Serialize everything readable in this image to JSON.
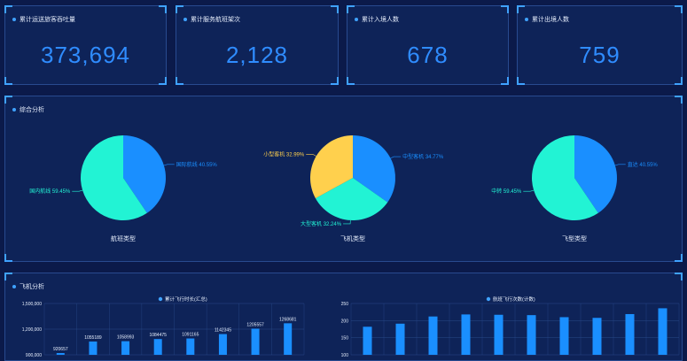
{
  "colors": {
    "bg": "#0b1a4a",
    "panel": "#0e2358",
    "accent": "#3fa2ff",
    "blue": "#1a8fff",
    "cyan": "#22f3d4",
    "yellow": "#ffd04d"
  },
  "kpis": [
    {
      "title": "累计运送旅客吞吐量",
      "value": "373,694"
    },
    {
      "title": "累计服务航班架次",
      "value": "2,128"
    },
    {
      "title": "累计入境人数",
      "value": "678"
    },
    {
      "title": "累计出境人数",
      "value": "759"
    }
  ],
  "analysis": {
    "title": "综合分析",
    "pies": [
      {
        "title": "航班类型",
        "slices": [
          {
            "name": "国际航线",
            "pct": 40.55,
            "label": "国际航线 40.55%",
            "color": "#1a8fff"
          },
          {
            "name": "国内航线",
            "pct": 59.45,
            "label": "国内航线 59.45%",
            "color": "#22f3d4"
          }
        ]
      },
      {
        "title": "飞机类型",
        "slices": [
          {
            "name": "中型客机",
            "pct": 34.77,
            "label": "中型客机 34.77%",
            "color": "#1a8fff"
          },
          {
            "name": "大型客机",
            "pct": 32.24,
            "label": "大型客机 32.24%",
            "color": "#22f3d4"
          },
          {
            "name": "小型客机",
            "pct": 32.99,
            "label": "小型客机 32.99%",
            "color": "#ffd04d"
          }
        ]
      },
      {
        "title": "飞型类型",
        "slices": [
          {
            "name": "直达",
            "pct": 40.55,
            "label": "直达 40.55%",
            "color": "#1a8fff"
          },
          {
            "name": "中转",
            "pct": 59.45,
            "label": "中转 59.45%",
            "color": "#22f3d4"
          }
        ]
      }
    ]
  },
  "flight": {
    "title": "飞机分析",
    "chart_data": [
      {
        "type": "bar",
        "legend": "累计飞行时长(汇总)",
        "ylim": [
          900000,
          1500000
        ],
        "yticks": [
          "1,500,000",
          "1,200,000",
          "900,000"
        ],
        "values": [
          920657,
          1055189,
          1058993,
          1084475,
          1091165,
          1142345,
          1205557,
          1268681
        ]
      },
      {
        "type": "bar",
        "legend": "航班飞行次数(计数)",
        "ylim": [
          100,
          250
        ],
        "yticks": [
          "250",
          "200",
          "150",
          "100"
        ],
        "values": [
          182,
          191,
          212,
          218,
          217,
          216,
          210,
          208,
          219,
          236
        ]
      }
    ]
  }
}
